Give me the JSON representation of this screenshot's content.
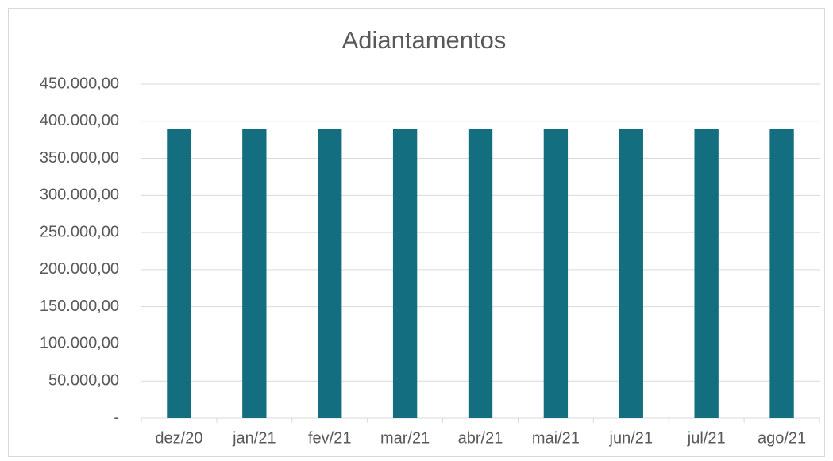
{
  "chart_data": {
    "type": "bar",
    "title": "Adiantamentos",
    "categories": [
      "dez/20",
      "jan/21",
      "fev/21",
      "mar/21",
      "abr/21",
      "mai/21",
      "jun/21",
      "jul/21",
      "ago/21"
    ],
    "values": [
      390000,
      390000,
      390000,
      390000,
      390000,
      390000,
      390000,
      390000,
      390000
    ],
    "color": "#136f80",
    "ylim": [
      0,
      450000
    ],
    "yticks": [
      {
        "value": 0,
        "label": "-"
      },
      {
        "value": 50000,
        "label": "50.000,00"
      },
      {
        "value": 100000,
        "label": "100.000,00"
      },
      {
        "value": 150000,
        "label": "150.000,00"
      },
      {
        "value": 200000,
        "label": "200.000,00"
      },
      {
        "value": 250000,
        "label": "250.000,00"
      },
      {
        "value": 300000,
        "label": "300.000,00"
      },
      {
        "value": 350000,
        "label": "350.000,00"
      },
      {
        "value": 400000,
        "label": "400.000,00"
      },
      {
        "value": 450000,
        "label": "450.000,00"
      }
    ],
    "grid": true
  }
}
